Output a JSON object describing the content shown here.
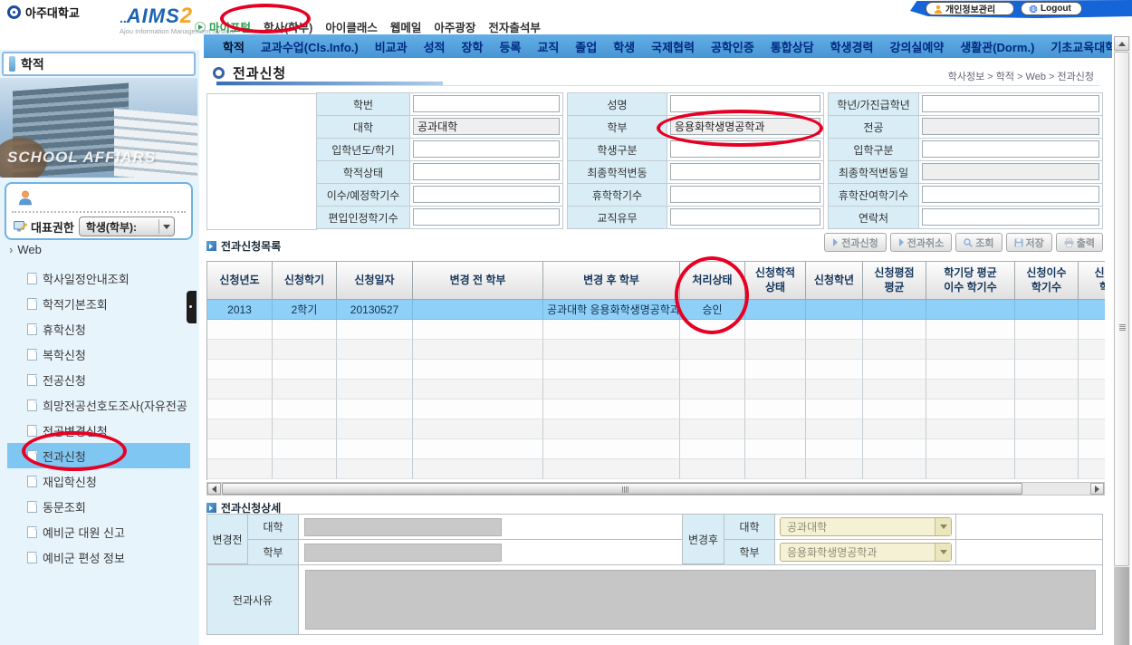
{
  "colors": {
    "menu_bar_blue": "#4795d4",
    "accent_blue": "#1b63b0",
    "highlight_row_blue": "#8fd0f8",
    "selected_item_blue": "#7fc6f3",
    "label_cell_blue": "#d9edf7",
    "annotation_red": "#e60023",
    "combo_cream": "#f5f1d4"
  },
  "header": {
    "university": "아주대학교",
    "aims_dots": "..",
    "aims_word": "AIMS",
    "aims_number": "2",
    "tagline": "Ajou Information Management System",
    "nav": [
      "마이포털",
      "학사(학부)",
      "아이클래스",
      "웹메일",
      "아주광장",
      "전자출석부"
    ],
    "privacy_button": "개인정보관리",
    "logout_button": "Logout"
  },
  "menu_bar": {
    "items": [
      "학적",
      "교과수업(Cls.Info.)",
      "비교과",
      "성적",
      "장학",
      "등록",
      "교직",
      "졸업",
      "학생",
      "국제협력",
      "공학인증",
      "통합상담",
      "학생경력",
      "강의실예약",
      "생활관(Dorm.)",
      "기초교육대학"
    ]
  },
  "sidebar": {
    "title": "학적",
    "photo_caption": "SCHOOL AFFIARS",
    "role_label": "대표권한",
    "role_value": "학생(학부):",
    "tree_root": "Web",
    "items": [
      "학사일정안내조회",
      "학적기본조회",
      "휴학신청",
      "복학신청",
      "전공신청",
      "희망전공선호도조사(자유전공",
      "전공변경신청",
      "전과신청",
      "재입학신청",
      "동문조회",
      "예비군 대원 신고",
      "예비군 편성 정보"
    ]
  },
  "page": {
    "title": "전과신청",
    "breadcrumb": "학사정보 > 학적 > Web > 전과신청"
  },
  "student_form": {
    "rows": [
      [
        "학번",
        "",
        "성명",
        "",
        "학년/가진급학년",
        ""
      ],
      [
        "대학",
        "공과대학",
        "학부",
        "응용화학생명공학과",
        "전공",
        ""
      ],
      [
        "입학년도/학기",
        "",
        "학생구분",
        "",
        "입학구분",
        ""
      ],
      [
        "학적상태",
        "",
        "최종학적변동",
        "",
        "최종학적변동일",
        ""
      ],
      [
        "이수/예정학기수",
        "",
        "휴학학기수",
        "",
        "휴학잔여학기수",
        ""
      ],
      [
        "편입인정학기수",
        "",
        "교직유무",
        "",
        "연락처",
        ""
      ]
    ]
  },
  "list_section": {
    "title": "전과신청목록",
    "buttons": [
      "전과신청",
      "전과취소",
      "조회",
      "저장",
      "출력"
    ],
    "columns": [
      "신청년도",
      "신청학기",
      "신청일자",
      "변경 전 학부",
      "변경 후 학부",
      "처리상태",
      "신청학적\n상태",
      "신청학년",
      "신청평점\n평균",
      "학기당 평균\n이수 학기수",
      "신청이수\n학기수",
      "신청\n학"
    ],
    "rows": [
      [
        "2013",
        "2학기",
        "20130527",
        "",
        "공과대학 응용화학생명공학과",
        "승인",
        "",
        "",
        "",
        "",
        "",
        ""
      ]
    ]
  },
  "detail_section": {
    "title": "전과신청상세",
    "before_label": "변경전",
    "after_label": "변경후",
    "college_label": "대학",
    "dept_label": "학부",
    "reason_label": "전과사유",
    "before_college": "",
    "before_dept": "",
    "after_college": "공과대학",
    "after_dept": "응용화학생명공학과",
    "reason": ""
  }
}
